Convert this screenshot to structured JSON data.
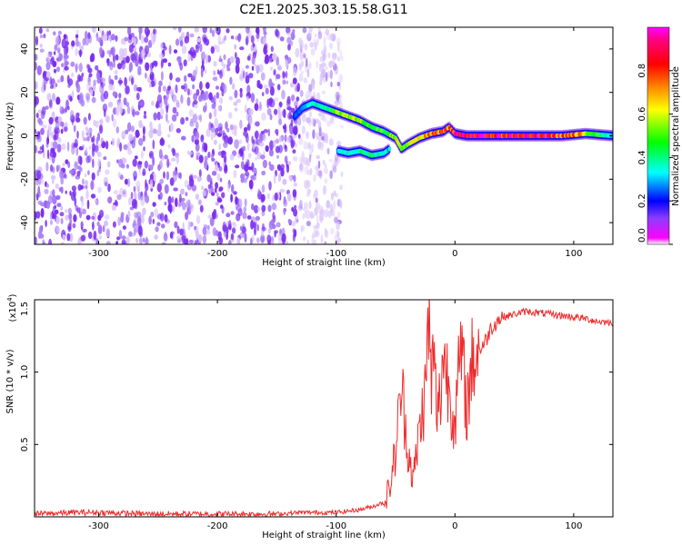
{
  "title": "C2E1.2025.303.15.58.G11",
  "colors": {
    "snr_line": "#ee2b2b",
    "frame": "#000000",
    "colormap": [
      "#ffffff",
      "#e3c8ff",
      "#8b3dff",
      "#0000ff",
      "#00ffff",
      "#00ff00",
      "#ffff00",
      "#ff7f00",
      "#ff0000",
      "#ff0088",
      "#ff00ff"
    ]
  },
  "chart_data": [
    {
      "type": "heatmap",
      "title": "C2E1.2025.303.15.58.G11",
      "xlabel": "Height of straight line (km)",
      "ylabel": "Frequency (Hz)",
      "xlim": [
        -354,
        133
      ],
      "ylim": [
        -50,
        50
      ],
      "xticks": [
        -300,
        -200,
        -100,
        0,
        100
      ],
      "xtick_labels": [
        "-300",
        "-200",
        "-100",
        "0",
        "100"
      ],
      "yticks": [
        -40,
        -20,
        0,
        20,
        40
      ],
      "ytick_labels": [
        "-40",
        "-20",
        "0",
        "20",
        "40"
      ],
      "colorbar": {
        "label": "Normalized spectral amplitude",
        "range": [
          0,
          1
        ],
        "ticks": [
          0.0,
          0.2,
          0.4,
          0.6,
          0.8
        ],
        "tick_labels": [
          "0.0",
          "0.2",
          "0.4",
          "0.6",
          "0.8"
        ]
      },
      "regions": [
        {
          "description_value": "noise",
          "x_range": [
            -354,
            -130
          ],
          "freq_range": [
            -50,
            50
          ],
          "amplitude": 0.1
        },
        {
          "description_value": "fading noise",
          "x_range": [
            -130,
            -95
          ],
          "freq_range": [
            -50,
            50
          ],
          "amplitude": 0.03
        }
      ],
      "ridge": {
        "x": [
          -135,
          -128,
          -120,
          -110,
          -100,
          -90,
          -80,
          -70,
          -60,
          -50,
          -45,
          -40,
          -30,
          -20,
          -10,
          -5,
          0,
          10,
          30,
          60,
          90,
          110,
          133
        ],
        "frequency": [
          9,
          13,
          15,
          13,
          11,
          9,
          7,
          4,
          2,
          -1,
          -6,
          -4,
          -1,
          1,
          2,
          4,
          1,
          0,
          0,
          0,
          0,
          1,
          0
        ],
        "amplitude": [
          0.25,
          0.3,
          0.35,
          0.4,
          0.5,
          0.6,
          0.55,
          0.5,
          0.45,
          0.6,
          0.5,
          0.55,
          0.6,
          0.7,
          0.85,
          0.7,
          0.9,
          0.95,
          0.85,
          0.9,
          0.8,
          0.6,
          0.3
        ]
      },
      "secondary_ridge": {
        "x": [
          -98,
          -90,
          -80,
          -70,
          -60,
          -55
        ],
        "frequency": [
          -7,
          -8,
          -7,
          -9,
          -8,
          -6
        ],
        "amplitude": [
          0.3,
          0.35,
          0.4,
          0.4,
          0.35,
          0.3
        ]
      }
    },
    {
      "type": "line",
      "xlabel": "Height of straight line (km)",
      "ylabel": "SNR (10 * v/v)",
      "y_multiplier": "(x10",
      "y_multiplier_exponent": "4",
      "y_multiplier_close": ")",
      "xlim": [
        -354,
        133
      ],
      "ylim": [
        0,
        1.5
      ],
      "xticks": [
        -300,
        -200,
        -100,
        0,
        100
      ],
      "xtick_labels": [
        "-300",
        "-200",
        "-100",
        "0",
        "100"
      ],
      "yticks": [
        0.5,
        1.0,
        1.5
      ],
      "ytick_labels": [
        "0.5",
        "1.0",
        "1.5"
      ],
      "series": [
        {
          "color": "#ee2b2b",
          "x": [
            -354,
            -320,
            -300,
            -260,
            -220,
            -180,
            -150,
            -130,
            -110,
            -100,
            -90,
            -80,
            -70,
            -60,
            -55,
            -50,
            -45,
            -40,
            -35,
            -30,
            -25,
            -22,
            -20,
            -18,
            -15,
            -12,
            -10,
            -5,
            0,
            5,
            10,
            15,
            20,
            25,
            30,
            35,
            40,
            50,
            60,
            70,
            80,
            90,
            100,
            110,
            120,
            133
          ],
          "y": [
            0.02,
            0.03,
            0.03,
            0.02,
            0.02,
            0.02,
            0.02,
            0.03,
            0.03,
            0.03,
            0.04,
            0.05,
            0.07,
            0.1,
            0.2,
            0.45,
            0.9,
            0.5,
            0.25,
            0.6,
            0.85,
            1.4,
            0.9,
            1.1,
            0.7,
            0.85,
            1.15,
            0.9,
            0.65,
            1.15,
            0.75,
            1.1,
            1.15,
            1.2,
            1.3,
            1.35,
            1.38,
            1.4,
            1.42,
            1.41,
            1.4,
            1.39,
            1.38,
            1.37,
            1.35,
            1.34
          ]
        }
      ]
    }
  ]
}
